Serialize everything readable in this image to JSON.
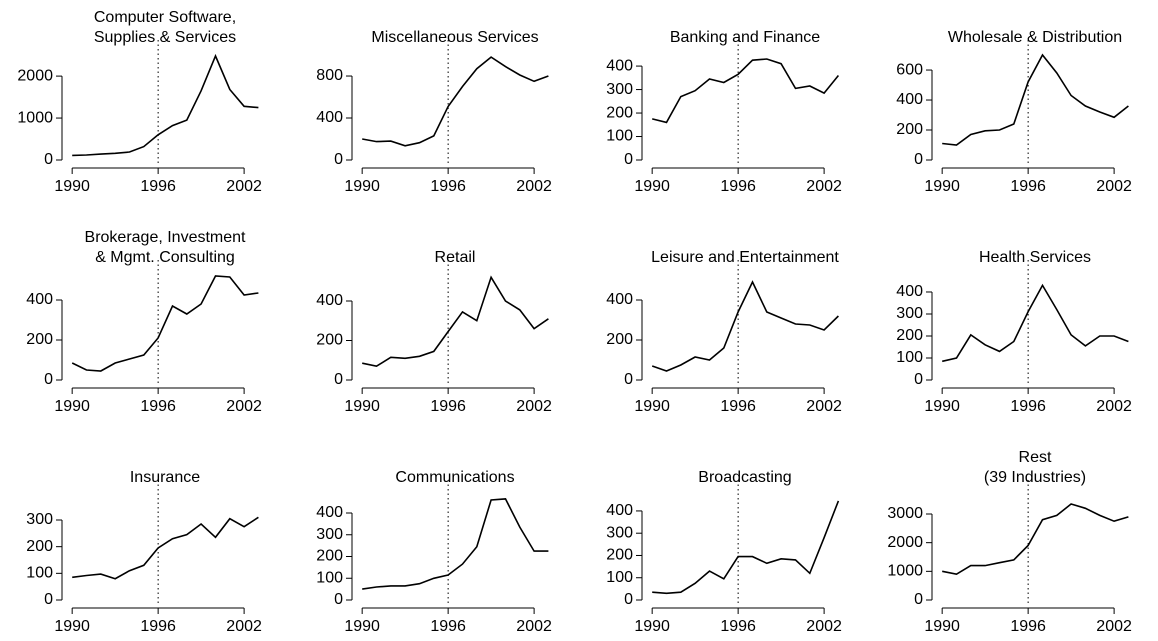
{
  "chart_data": [
    {
      "type": "line",
      "title": [
        "Computer Software,",
        "Supplies & Services"
      ],
      "x": [
        1990,
        1991,
        1992,
        1993,
        1994,
        1995,
        1996,
        1997,
        1998,
        1999,
        2000,
        2001,
        2002,
        2003
      ],
      "values": [
        110,
        120,
        140,
        160,
        190,
        320,
        600,
        820,
        950,
        1650,
        2480,
        1680,
        1280,
        1250
      ],
      "xlim": [
        1989.5,
        2003.5
      ],
      "xticks": [
        1990,
        1996,
        2002
      ],
      "ylim": [
        0,
        2670
      ],
      "yticks": [
        0,
        1000,
        2000
      ],
      "vline": 1996,
      "color": "#000000"
    },
    {
      "type": "line",
      "title": [
        "Miscellaneous Services"
      ],
      "x": [
        1990,
        1991,
        1992,
        1993,
        1994,
        1995,
        1996,
        1997,
        1998,
        1999,
        2000,
        2001,
        2002,
        2003
      ],
      "values": [
        200,
        175,
        180,
        135,
        165,
        230,
        510,
        700,
        870,
        980,
        890,
        810,
        750,
        800
      ],
      "xlim": [
        1989.5,
        2003.5
      ],
      "xticks": [
        1990,
        1996,
        2002
      ],
      "ylim": [
        0,
        1067
      ],
      "yticks": [
        0,
        400,
        800
      ],
      "vline": 1996,
      "color": "#000000"
    },
    {
      "type": "line",
      "title": [
        "Banking and Finance"
      ],
      "x": [
        1990,
        1991,
        1992,
        1993,
        1994,
        1995,
        1996,
        1997,
        1998,
        1999,
        2000,
        2001,
        2002,
        2003
      ],
      "values": [
        175,
        160,
        270,
        295,
        345,
        330,
        365,
        425,
        430,
        410,
        305,
        315,
        285,
        360
      ],
      "xlim": [
        1989.5,
        2003.5
      ],
      "xticks": [
        1990,
        1996,
        2002
      ],
      "ylim": [
        0,
        477
      ],
      "yticks": [
        0,
        100,
        200,
        300,
        400
      ],
      "vline": 1996,
      "color": "#000000"
    },
    {
      "type": "line",
      "title": [
        "Wholesale & Distribution"
      ],
      "x": [
        1990,
        1991,
        1992,
        1993,
        1994,
        1995,
        1996,
        1997,
        1998,
        1999,
        2000,
        2001,
        2002,
        2003
      ],
      "values": [
        110,
        100,
        170,
        195,
        200,
        240,
        520,
        700,
        580,
        430,
        360,
        320,
        285,
        360
      ],
      "xlim": [
        1989.5,
        2003.5
      ],
      "xticks": [
        1990,
        1996,
        2002
      ],
      "ylim": [
        0,
        747
      ],
      "yticks": [
        0,
        200,
        400,
        600
      ],
      "vline": 1996,
      "color": "#000000"
    },
    {
      "type": "line",
      "title": [
        "Brokerage, Investment",
        "& Mgmt. Consulting"
      ],
      "x": [
        1990,
        1991,
        1992,
        1993,
        1994,
        1995,
        1996,
        1997,
        1998,
        1999,
        2000,
        2001,
        2002,
        2003
      ],
      "values": [
        85,
        50,
        45,
        85,
        105,
        125,
        210,
        370,
        330,
        380,
        520,
        515,
        425,
        435
      ],
      "xlim": [
        1989.5,
        2003.5
      ],
      "xticks": [
        1990,
        1996,
        2002
      ],
      "ylim": [
        0,
        560
      ],
      "yticks": [
        0,
        200,
        400
      ],
      "vline": 1996,
      "color": "#000000"
    },
    {
      "type": "line",
      "title": [
        "Retail"
      ],
      "x": [
        1990,
        1991,
        1992,
        1993,
        1994,
        1995,
        1996,
        1997,
        1998,
        1999,
        2000,
        2001,
        2002,
        2003
      ],
      "values": [
        85,
        70,
        115,
        110,
        120,
        145,
        245,
        345,
        300,
        520,
        400,
        355,
        260,
        310
      ],
      "xlim": [
        1989.5,
        2003.5
      ],
      "xticks": [
        1990,
        1996,
        2002
      ],
      "ylim": [
        0,
        567
      ],
      "yticks": [
        0,
        200,
        400
      ],
      "vline": 1996,
      "color": "#000000"
    },
    {
      "type": "line",
      "title": [
        "Leisure and Entertainment"
      ],
      "x": [
        1990,
        1991,
        1992,
        1993,
        1994,
        1995,
        1996,
        1997,
        1998,
        1999,
        2000,
        2001,
        2002,
        2003
      ],
      "values": [
        70,
        45,
        75,
        115,
        100,
        160,
        340,
        490,
        340,
        310,
        280,
        275,
        250,
        320
      ],
      "xlim": [
        1989.5,
        2003.5
      ],
      "xticks": [
        1990,
        1996,
        2002
      ],
      "ylim": [
        0,
        560
      ],
      "yticks": [
        0,
        200,
        400
      ],
      "vline": 1996,
      "color": "#000000"
    },
    {
      "type": "line",
      "title": [
        "Health Services"
      ],
      "x": [
        1990,
        1991,
        1992,
        1993,
        1994,
        1995,
        1996,
        1997,
        1998,
        1999,
        2000,
        2001,
        2002,
        2003
      ],
      "values": [
        85,
        100,
        205,
        160,
        130,
        175,
        310,
        430,
        320,
        205,
        155,
        200,
        200,
        175
      ],
      "xlim": [
        1989.5,
        2003.5
      ],
      "xticks": [
        1990,
        1996,
        2002
      ],
      "ylim": [
        0,
        509
      ],
      "yticks": [
        0,
        100,
        200,
        300,
        400
      ],
      "vline": 1996,
      "color": "#000000"
    },
    {
      "type": "line",
      "title": [
        "Insurance"
      ],
      "x": [
        1990,
        1991,
        1992,
        1993,
        1994,
        1995,
        1996,
        1997,
        1998,
        1999,
        2000,
        2001,
        2002,
        2003
      ],
      "values": [
        85,
        92,
        97,
        80,
        110,
        130,
        195,
        230,
        245,
        285,
        235,
        305,
        275,
        310
      ],
      "xlim": [
        1989.5,
        2003.5
      ],
      "xticks": [
        1990,
        1996,
        2002
      ],
      "ylim": [
        0,
        420
      ],
      "yticks": [
        0,
        100,
        200,
        300
      ],
      "vline": 1996,
      "color": "#000000"
    },
    {
      "type": "line",
      "title": [
        "Communications"
      ],
      "x": [
        1990,
        1991,
        1992,
        1993,
        1994,
        1995,
        1996,
        1997,
        1998,
        1999,
        2000,
        2001,
        2002,
        2003
      ],
      "values": [
        50,
        60,
        65,
        65,
        75,
        100,
        115,
        165,
        245,
        460,
        465,
        335,
        225,
        225
      ],
      "xlim": [
        1989.5,
        2003.5
      ],
      "xticks": [
        1990,
        1996,
        2002
      ],
      "ylim": [
        0,
        515
      ],
      "yticks": [
        0,
        100,
        200,
        300,
        400
      ],
      "vline": 1996,
      "color": "#000000"
    },
    {
      "type": "line",
      "title": [
        "Broadcasting"
      ],
      "x": [
        1990,
        1991,
        1992,
        1993,
        1994,
        1995,
        1996,
        1997,
        1998,
        1999,
        2000,
        2001,
        2002,
        2003
      ],
      "values": [
        35,
        30,
        35,
        75,
        130,
        95,
        195,
        195,
        165,
        185,
        180,
        120,
        280,
        445
      ],
      "xlim": [
        1989.5,
        2003.5
      ],
      "xticks": [
        1990,
        1996,
        2002
      ],
      "ylim": [
        0,
        503
      ],
      "yticks": [
        0,
        100,
        200,
        300,
        400
      ],
      "vline": 1996,
      "color": "#000000"
    },
    {
      "type": "line",
      "title": [
        "Rest",
        "(39 Industries)"
      ],
      "x": [
        1990,
        1991,
        1992,
        1993,
        1994,
        1995,
        1996,
        1997,
        1998,
        1999,
        2000,
        2001,
        2002,
        2003
      ],
      "values": [
        1000,
        900,
        1200,
        1200,
        1300,
        1400,
        1900,
        2800,
        2950,
        3350,
        3200,
        2950,
        2750,
        2900
      ],
      "xlim": [
        1989.5,
        2003.5
      ],
      "xticks": [
        1990,
        1996,
        2002
      ],
      "ylim": [
        0,
        3907
      ],
      "yticks": [
        0,
        1000,
        2000,
        3000
      ],
      "vline": 1996,
      "color": "#000000"
    }
  ]
}
